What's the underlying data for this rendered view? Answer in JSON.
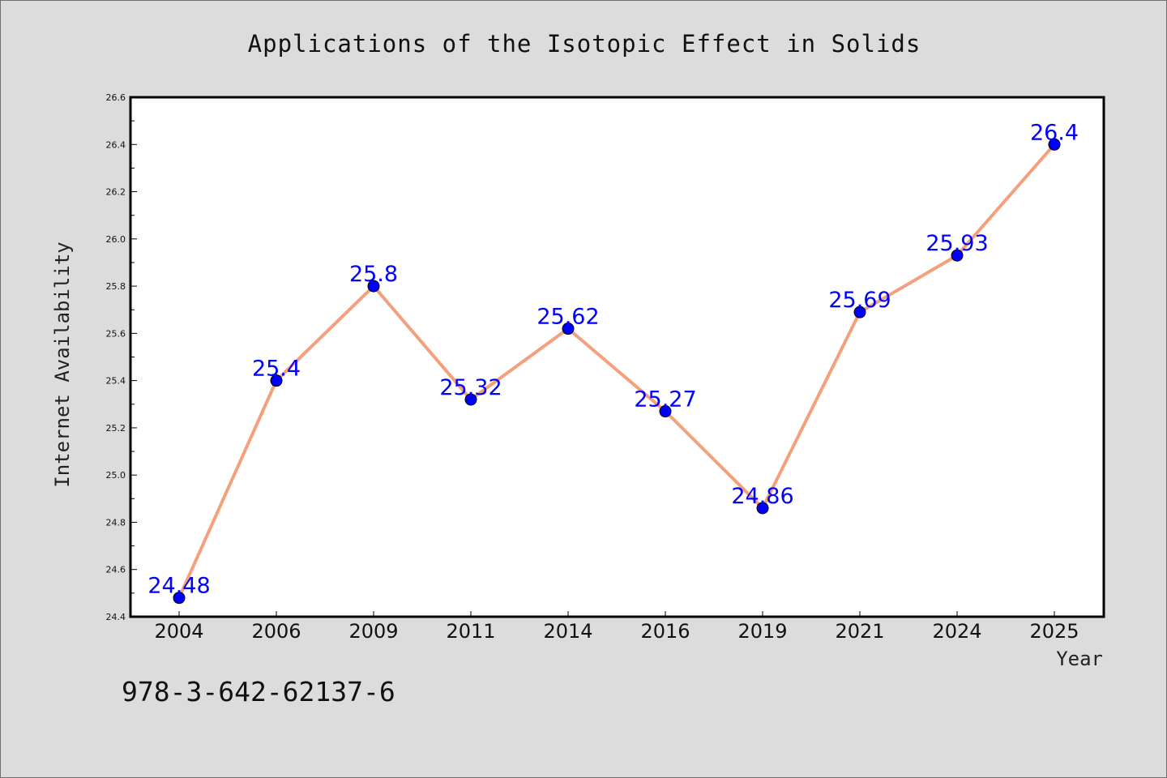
{
  "chart_data": {
    "type": "line",
    "title": "Applications of the Isotopic Effect in Solids",
    "xlabel": "Year",
    "ylabel": "Internet Availability",
    "categories": [
      "2004",
      "2006",
      "2009",
      "2011",
      "2014",
      "2016",
      "2019",
      "2021",
      "2024",
      "2025"
    ],
    "series": [
      {
        "values": [
          24.48,
          25.4,
          25.8,
          25.32,
          25.62,
          25.27,
          24.86,
          25.69,
          25.93,
          26.4
        ]
      }
    ],
    "data_labels": [
      "24.48",
      "25.4",
      "25.8",
      "25.32",
      "25.62",
      "25.27",
      "24.86",
      "25.69",
      "25.93",
      "26.4"
    ],
    "ylim": [
      24.4,
      26.6
    ],
    "yticks": [
      "24.4",
      "24.6",
      "24.8",
      "25.0",
      "25.2",
      "25.4",
      "25.6",
      "25.8",
      "26.0",
      "26.2",
      "26.4",
      "26.6"
    ],
    "grid": false,
    "legend": "none",
    "colors": {
      "line": "#f4a07d",
      "marker": "#0000ff",
      "data_label": "#0000ff",
      "background": "#dcdcdc",
      "plot_background": "#ffffff"
    }
  },
  "annotation": {
    "isbn": "978-3-642-62137-6"
  }
}
